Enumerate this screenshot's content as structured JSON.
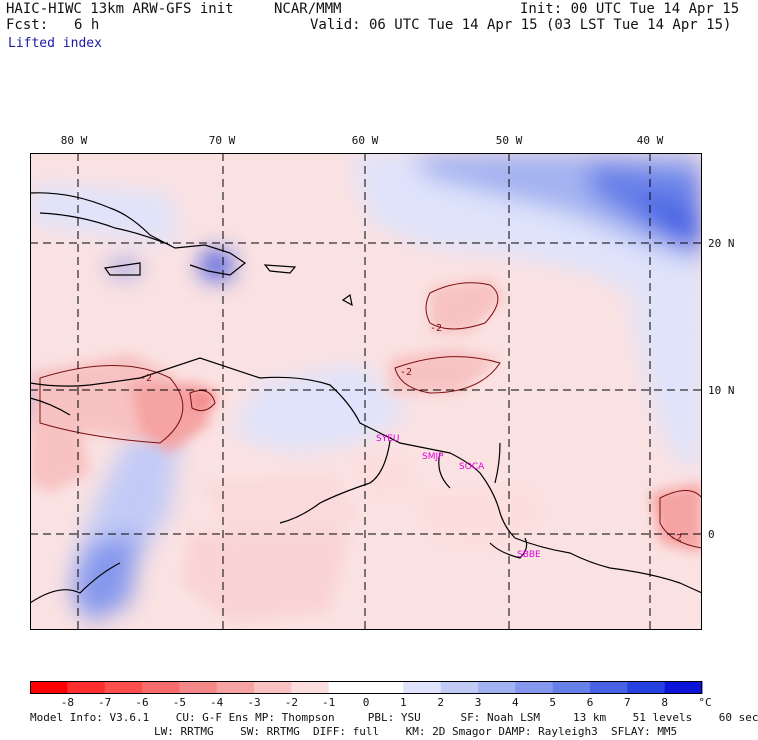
{
  "header": {
    "title_left": "HAIC-HIWC 13km ARW-GFS init",
    "org": "NCAR/MMM",
    "init": "Init: 00 UTC Tue 14 Apr 15",
    "fcst_label": "Fcst:",
    "fcst_value": "6 h",
    "valid": "Valid: 06 UTC Tue 14 Apr 15 (03 LST Tue 14 Apr 15)",
    "field": "Lifted index"
  },
  "map": {
    "lon_labels": [
      "80 W",
      "70 W",
      "60 W",
      "50 W",
      "40 W"
    ],
    "lat_labels": [
      "20 N",
      "10 N",
      "0"
    ],
    "stations": [
      "SYEU",
      "SMJP",
      "SOCA",
      "SBBE"
    ],
    "contour_label": "-2",
    "colors": {
      "neg": "#ef5a5a",
      "pos": "#3d5fe6",
      "land": "#000000",
      "station": "#e000e0"
    }
  },
  "colorbar": {
    "labels": [
      "-8",
      "-7",
      "-6",
      "-5",
      "-4",
      "-3",
      "-2",
      "-1",
      "0",
      "1",
      "2",
      "3",
      "4",
      "5",
      "6",
      "7",
      "8"
    ],
    "unit": "°C",
    "colors": [
      "#ff0000",
      "#ff2e2e",
      "#fd4e4e",
      "#f86b6b",
      "#f48888",
      "#f5a3a3",
      "#f8c2c2",
      "#fcdede",
      "#ffffff",
      "#ffffff",
      "#dfe3fb",
      "#c2cbf6",
      "#a3b2f1",
      "#8598ed",
      "#6780e8",
      "#4763e4",
      "#2541e0",
      "#0b14d8"
    ]
  },
  "model_info": {
    "line1": "Model Info: V3.6.1    CU: G-F Ens MP: Thompson     PBL: YSU      SF: Noah LSM     13 km    51 levels    60 sec",
    "line2": "LW: RRTMG    SW: RRTMG  DIFF: full    KM: 2D Smagor DAMP: Rayleigh3  SFLAY: MM5"
  }
}
